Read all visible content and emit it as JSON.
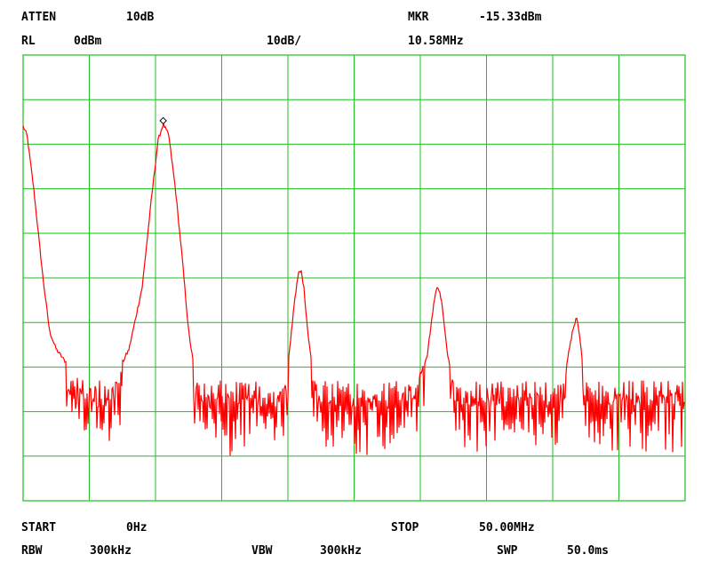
{
  "header": {
    "atten_label": "ATTEN",
    "atten_value": "10dB",
    "mkr_label": "MKR",
    "mkr_value": "-15.33dBm",
    "rl_label": "RL",
    "rl_value": "0dBm",
    "scale_value": "10dB/",
    "mkr_freq": "10.58MHz"
  },
  "footer": {
    "start_label": "START",
    "start_value": "0Hz",
    "stop_label": "STOP",
    "stop_value": "50.00MHz",
    "rbw_label": "RBW",
    "rbw_value": "300kHz",
    "vbw_label": "VBW",
    "vbw_value": "300kHz",
    "swp_label": "SWP",
    "swp_value": "50.0ms"
  },
  "colors": {
    "grid": "#1fbf1f",
    "trace": "#ff0000",
    "background": "#ffffff"
  },
  "chart_data": {
    "type": "line",
    "xlim": [
      0,
      50
    ],
    "ylim": [
      -100,
      0
    ],
    "grid": true,
    "divisions": {
      "x": 10,
      "y": 10
    },
    "marker": {
      "x": 10.58,
      "y": -15.33
    },
    "noise_floor": {
      "min": -92,
      "max": -73
    },
    "series": [
      {
        "x": [
          0,
          0.3,
          0.8,
          1.5,
          2.0,
          2.5,
          3.0,
          4.0,
          6.0,
          7.0,
          8.0,
          9.0,
          9.7,
          10.2,
          10.58,
          11.0,
          11.5,
          12.0,
          12.5,
          13.0,
          14.0,
          16.0,
          19.0,
          20.0,
          20.5,
          20.8,
          21.0,
          21.2,
          21.5,
          22.0,
          22.5,
          23.0,
          25.0,
          29.0,
          30.5,
          31.0,
          31.3,
          31.6,
          32.0,
          32.5,
          33.0,
          35.0,
          40.0,
          41.0,
          41.5,
          41.8,
          42.0,
          42.2,
          42.5,
          43.0,
          44.0,
          46.0,
          50.0
        ],
        "y": [
          -16,
          -18,
          -30,
          -50,
          -62,
          -66,
          -68,
          -72,
          -75,
          -72,
          -66,
          -52,
          -32,
          -19,
          -15.5,
          -18,
          -30,
          -45,
          -62,
          -72,
          -76,
          -76,
          -76,
          -70,
          -55,
          -49,
          -48.5,
          -52,
          -62,
          -74,
          -76,
          -76,
          -76,
          -76,
          -68,
          -56,
          -51.5,
          -55,
          -66,
          -74,
          -76,
          -76,
          -76,
          -70,
          -62,
          -58.5,
          -62,
          -68,
          -74,
          -76,
          -76,
          -76,
          -76
        ]
      }
    ]
  }
}
